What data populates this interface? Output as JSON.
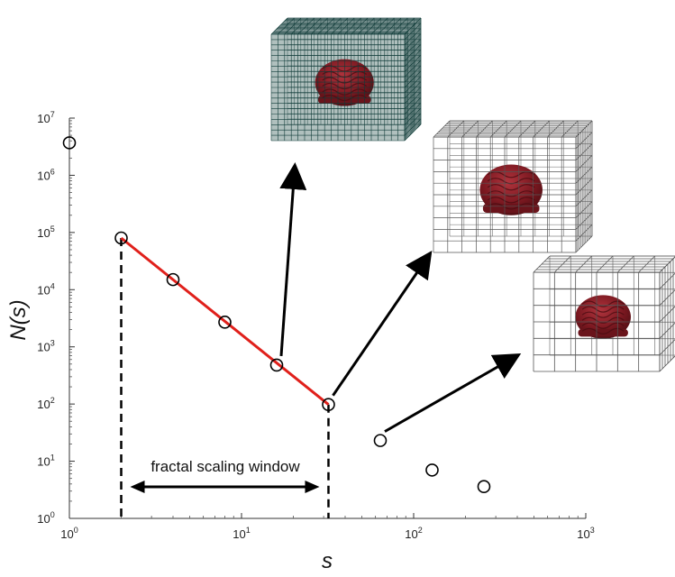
{
  "chart_data": {
    "type": "scatter",
    "title": "",
    "xlabel": "s",
    "ylabel": "N(s)",
    "xscale": "log",
    "yscale": "log",
    "xlim": [
      1,
      1000
    ],
    "ylim": [
      1,
      10000000
    ],
    "x_ticks": [
      {
        "base": "10",
        "exp": "0"
      },
      {
        "base": "10",
        "exp": "1"
      },
      {
        "base": "10",
        "exp": "2"
      },
      {
        "base": "10",
        "exp": "3"
      }
    ],
    "y_ticks": [
      {
        "base": "10",
        "exp": "0"
      },
      {
        "base": "10",
        "exp": "1"
      },
      {
        "base": "10",
        "exp": "2"
      },
      {
        "base": "10",
        "exp": "3"
      },
      {
        "base": "10",
        "exp": "4"
      },
      {
        "base": "10",
        "exp": "5"
      },
      {
        "base": "10",
        "exp": "6"
      },
      {
        "base": "10",
        "exp": "7"
      }
    ],
    "series": [
      {
        "marker": "open-circle",
        "color": "#000000",
        "points": [
          {
            "x": 1,
            "y": 3700000
          },
          {
            "x": 2,
            "y": 80000
          },
          {
            "x": 4,
            "y": 15000
          },
          {
            "x": 8,
            "y": 2700
          },
          {
            "x": 16,
            "y": 480
          },
          {
            "x": 32,
            "y": 98
          },
          {
            "x": 64,
            "y": 23
          },
          {
            "x": 128,
            "y": 7
          },
          {
            "x": 256,
            "y": 3.6
          }
        ]
      }
    ],
    "fit_line": {
      "color": "#e0201b",
      "from": {
        "x": 2,
        "y": 80000
      },
      "to": {
        "x": 32,
        "y": 98
      }
    },
    "scaling_window": {
      "label": "fractal scaling window",
      "x_start": 2,
      "x_end": 32
    }
  },
  "grid_insets": [
    {
      "name": "fine-grid-brain",
      "cells": 20
    },
    {
      "name": "medium-grid-brain",
      "cells": 10
    },
    {
      "name": "coarse-grid-brain",
      "cells": 6
    }
  ],
  "colors": {
    "fit_line": "#e0201b",
    "brain": "#7a1820",
    "grid_fine": "#0f3b38"
  }
}
